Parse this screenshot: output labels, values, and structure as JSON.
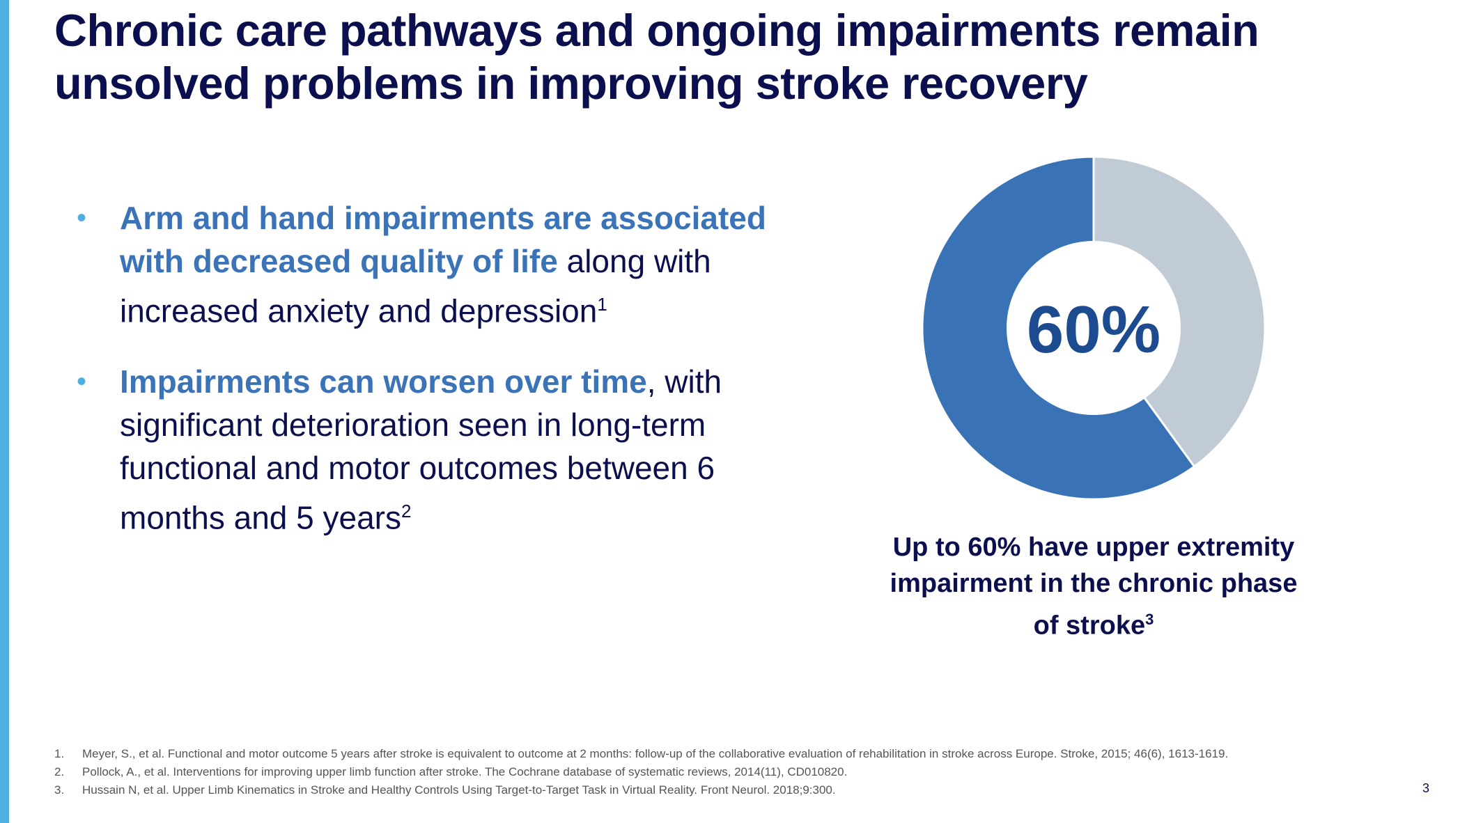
{
  "slide": {
    "title": "Chronic care pathways and ongoing impairments remain unsolved problems in improving stroke recovery",
    "page_number": "3"
  },
  "bullets": [
    {
      "highlight": "Arm and hand impairments are associated with decreased quality of life",
      "text": " along with increased anxiety and depression",
      "superscript": "1"
    },
    {
      "highlight": "Impairments can worsen over time",
      "text": ", with significant deterioration seen in long-term functional and motor outcomes between 6 months and 5 years",
      "superscript": "2"
    }
  ],
  "stat": {
    "label": "60%",
    "caption": "Up to 60% have upper extremity impairment in the chronic phase of stroke",
    "superscript": "3"
  },
  "chart_data": {
    "type": "pie",
    "categories": [
      "",
      ""
    ],
    "values": [
      60,
      40
    ],
    "colors": [
      "#3a72b6",
      "#c1cbd6"
    ],
    "center_label": "60%"
  },
  "references": [
    {
      "num": "1.",
      "text": "Meyer, S., et al. Functional and motor outcome 5 years after stroke is equivalent to outcome at 2 months: follow-up of the collaborative evaluation of rehabilitation in stroke across Europe. Stroke, 2015; 46(6), 1613-1619."
    },
    {
      "num": "2.",
      "text": "Pollock, A., et al. Interventions for improving upper limb function after stroke. The Cochrane database of systematic reviews, 2014(11), CD010820."
    },
    {
      "num": "3.",
      "text": "Hussain N, et al. Upper Limb Kinematics in Stroke and Healthy Controls Using Target-to-Target Task in Virtual Reality. Front Neurol. 2018;9:300."
    }
  ],
  "theme": {
    "accent": "#4fb0e0",
    "heading": "#0b0f4d",
    "highlight": "#3b73b8"
  }
}
